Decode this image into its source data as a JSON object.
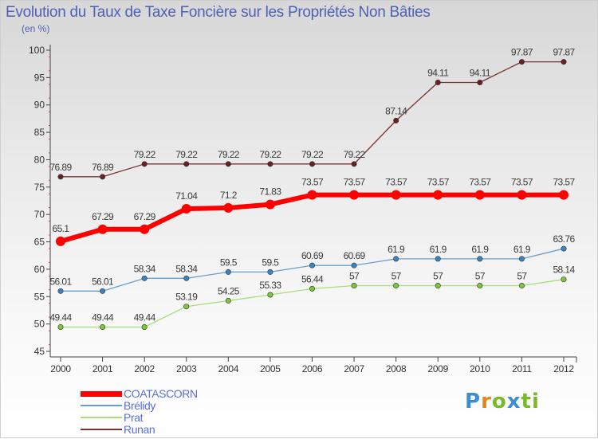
{
  "title": "Evolution du Taux de Taxe Foncière sur les Propriétés Non Bâties",
  "unit_label": "(en %)",
  "brand": {
    "p": "P",
    "r": "r",
    "o": "o",
    "x": "x",
    "i": "i",
    "t": "ti"
  },
  "chart_data": {
    "type": "line",
    "title": "Evolution du Taux de Taxe Foncière sur les Propriétés Non Bâties",
    "ylabel": "(en %)",
    "xlabel": "",
    "ylim": [
      45,
      100
    ],
    "yticks": [
      45,
      50,
      55,
      60,
      65,
      70,
      75,
      80,
      85,
      90,
      95,
      100
    ],
    "grid": false,
    "legend_position": "bottom-left",
    "x": [
      "2000",
      "2001",
      "2002",
      "2003",
      "2004",
      "2005",
      "2006",
      "2007",
      "2008",
      "2009",
      "2010",
      "2011",
      "2012"
    ],
    "series": [
      {
        "name": "Runan",
        "color": "#7a3131",
        "marker_color": "#6b1f1f",
        "values": [
          76.89,
          76.89,
          79.22,
          79.22,
          79.22,
          79.22,
          79.22,
          79.22,
          87.14,
          94.11,
          94.11,
          97.87,
          97.87
        ],
        "labels": [
          "76.89",
          "76.89",
          "79.22",
          "79.22",
          "79.22",
          "79.22",
          "79.22",
          "79.22",
          "87.14",
          "94.11",
          "94.11",
          "97.87",
          "97.87"
        ]
      },
      {
        "name": "COATASCORN",
        "color": "#ff0000",
        "marker_color": "#ff0000",
        "values": [
          65.1,
          67.29,
          67.29,
          71.04,
          71.2,
          71.83,
          73.57,
          73.57,
          73.57,
          73.57,
          73.57,
          73.57,
          73.57
        ],
        "labels": [
          "65.1",
          "67.29",
          "67.29",
          "71.04",
          "71.2",
          "71.83",
          "73.57",
          "73.57",
          "73.57",
          "73.57",
          "73.57",
          "73.57",
          "73.57"
        ]
      },
      {
        "name": "Brélidy",
        "color": "#6a9ec9",
        "marker_color": "#3a84c4",
        "values": [
          56.01,
          56.01,
          58.34,
          58.34,
          59.5,
          59.5,
          60.69,
          60.69,
          61.9,
          61.9,
          61.9,
          61.9,
          63.76
        ],
        "labels": [
          "56.01",
          "56.01",
          "58.34",
          "58.34",
          "59.5",
          "59.5",
          "60.69",
          "60.69",
          "61.9",
          "61.9",
          "61.9",
          "61.9",
          "63.76"
        ]
      },
      {
        "name": "Prat",
        "color": "#a8de7a",
        "marker_color": "#7cc63a",
        "values": [
          49.44,
          49.44,
          49.44,
          53.19,
          54.25,
          55.33,
          56.44,
          57,
          57,
          57,
          57,
          57,
          58.14
        ],
        "labels": [
          "49.44",
          "49.44",
          "49.44",
          "53.19",
          "54.25",
          "55.33",
          "56.44",
          "57",
          "57",
          "57",
          "57",
          "57",
          "58.14"
        ]
      }
    ],
    "legend_order": [
      "COATASCORN",
      "Brélidy",
      "Prat",
      "Runan"
    ]
  }
}
